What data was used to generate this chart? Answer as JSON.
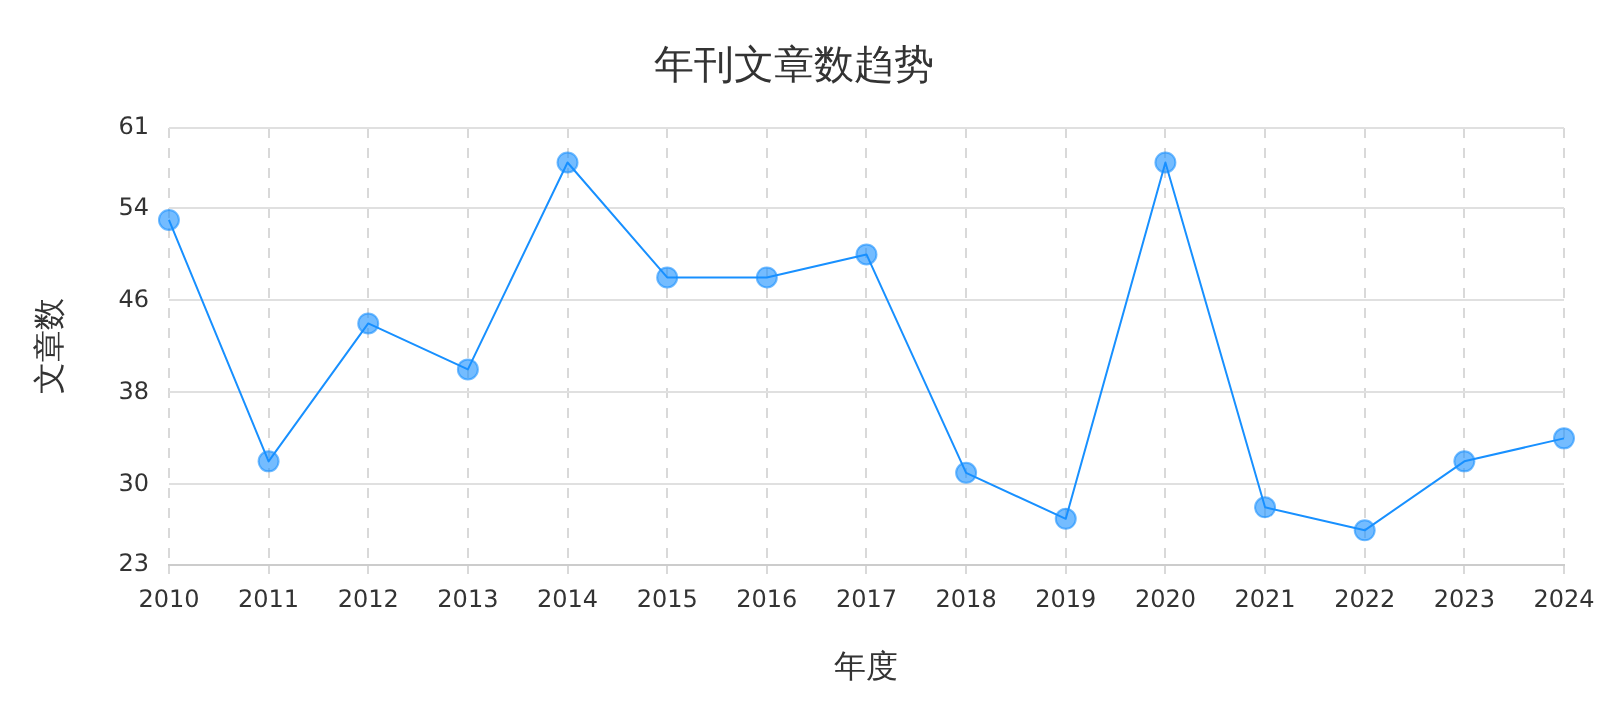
{
  "chart_data": {
    "type": "line",
    "title": "年刊文章数趋势",
    "xlabel": "年度",
    "ylabel": "文章数",
    "categories": [
      "2010",
      "2011",
      "2012",
      "2013",
      "2014",
      "2015",
      "2016",
      "2017",
      "2018",
      "2019",
      "2020",
      "2021",
      "2022",
      "2023",
      "2024"
    ],
    "series": [
      {
        "color": "#1890ff",
        "values": [
          53,
          32,
          44,
          40,
          58,
          48,
          48,
          50,
          31,
          27,
          58,
          28,
          26,
          32,
          34
        ]
      }
    ],
    "ylim": [
      23,
      61
    ],
    "yticks": [
      23,
      30,
      38,
      46,
      54,
      61
    ],
    "grid": true,
    "marker": "circle",
    "line_style": "solid",
    "legend": false
  }
}
